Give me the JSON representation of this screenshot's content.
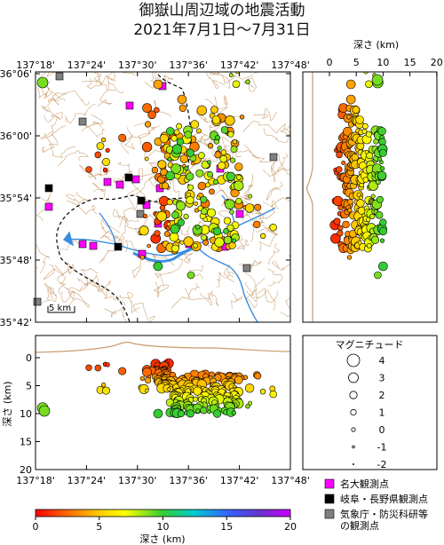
{
  "title_line1": "御嶽山周辺域の地震活動",
  "title_line2": "2021年7月1日～7月31日",
  "lon_ticks": [
    "137°18'",
    "137°24'",
    "137°30'",
    "137°36'",
    "137°42'",
    "137°48'"
  ],
  "lat_ticks": [
    "36°06'",
    "36°00'",
    "35°54'",
    "35°48'",
    "35°42'"
  ],
  "depth_label": "深さ (km)",
  "depth_ticks_right": [
    "0",
    "5",
    "10",
    "15",
    "20"
  ],
  "depth_ticks_bottom": [
    "0",
    "5",
    "10",
    "15",
    "20"
  ],
  "depth_axis_label": "深さ (km)",
  "scale_label": "5 km",
  "magnitude_title": "マグニチュード",
  "magnitude_levels": [
    "4",
    "3",
    "2",
    "1",
    "0",
    "-1",
    "-2"
  ],
  "station_legend": [
    {
      "label": "名大観測点",
      "color": "#ff00ff"
    },
    {
      "label": "岐阜・長野県観測点",
      "color": "#000000"
    },
    {
      "label": "気象庁・防災科研等",
      "label2": "の観測点",
      "color": "#808080"
    }
  ],
  "colorbar_ticks": [
    "0",
    "5",
    "10",
    "15",
    "20"
  ],
  "colorbar_label": "深さ (km)",
  "colors": {
    "contour": "#c89a6a",
    "river": "#3a8ee0",
    "frame": "#000000"
  }
}
